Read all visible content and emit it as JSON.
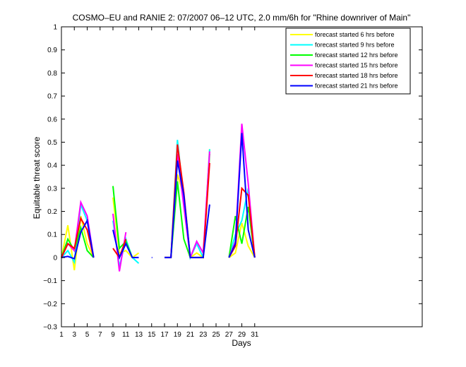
{
  "chart_data": {
    "type": "line",
    "title": "COSMO–EU and RANIE 2: 07/2007 06–12 UTC, 2.0 mm/6h for \"Rhine downriver of Main\"",
    "xlabel": "Days",
    "ylabel": "Equitable threat score",
    "xlim": [
      1,
      57
    ],
    "ylim": [
      -0.3,
      1
    ],
    "x_ticks": [
      1,
      3,
      5,
      7,
      9,
      11,
      13,
      15,
      17,
      19,
      21,
      23,
      25,
      27,
      29,
      31
    ],
    "y_ticks": [
      -0.3,
      -0.2,
      -0.1,
      0,
      0.1,
      0.2,
      0.3,
      0.4,
      0.5,
      0.6,
      0.7,
      0.8,
      0.9,
      1
    ],
    "y_tick_labels": [
      "−0.3",
      "−0.2",
      "−0.1",
      "0",
      "0.1",
      "0.2",
      "0.3",
      "0.4",
      "0.5",
      "0.6",
      "0.7",
      "0.8",
      "0.9",
      "1"
    ],
    "grid": false,
    "legend_position": "top-right",
    "series": [
      {
        "name": "forecast started 6 hrs before",
        "color": "#ffff00",
        "segments": [
          [
            [
              1,
              0
            ],
            [
              2,
              0.14
            ],
            [
              3,
              -0.055
            ],
            [
              4,
              0.18
            ],
            [
              5,
              0.06
            ],
            [
              6,
              0
            ]
          ],
          [
            [
              9,
              0.26
            ],
            [
              10,
              0.02
            ],
            [
              11,
              0.03
            ],
            [
              12,
              0
            ],
            [
              13,
              0.02
            ]
          ],
          [
            [
              17,
              0
            ],
            [
              18,
              0
            ],
            [
              19,
              0.36
            ],
            [
              20,
              0.27
            ],
            [
              21,
              0
            ],
            [
              22,
              0.02
            ],
            [
              23,
              0
            ],
            [
              24,
              0.47
            ]
          ],
          [
            [
              27,
              0
            ],
            [
              28,
              0.02
            ],
            [
              29,
              0.15
            ],
            [
              30,
              0.05
            ],
            [
              31,
              0
            ]
          ]
        ]
      },
      {
        "name": "forecast started 9 hrs before",
        "color": "#00ffff",
        "segments": [
          [
            [
              1,
              0
            ],
            [
              2,
              0.03
            ],
            [
              3,
              -0.02
            ],
            [
              4,
              0.23
            ],
            [
              5,
              0.16
            ],
            [
              6,
              0
            ]
          ],
          [
            [
              9,
              0.16
            ],
            [
              10,
              -0.04
            ],
            [
              11,
              0.08
            ],
            [
              12,
              0
            ],
            [
              13,
              -0.025
            ]
          ],
          [
            [
              17,
              0
            ],
            [
              18,
              0
            ],
            [
              19,
              0.51
            ],
            [
              20,
              0.25
            ],
            [
              21,
              0
            ],
            [
              22,
              0.06
            ],
            [
              23,
              0
            ],
            [
              24,
              0.47
            ]
          ],
          [
            [
              27,
              0
            ],
            [
              28,
              0.1
            ],
            [
              29,
              0.16
            ],
            [
              30,
              0.3
            ],
            [
              31,
              0
            ]
          ]
        ]
      },
      {
        "name": "forecast started 12 hrs before",
        "color": "#00ff00",
        "segments": [
          [
            [
              1,
              0
            ],
            [
              2,
              0.08
            ],
            [
              3,
              0.03
            ],
            [
              4,
              0.13
            ],
            [
              5,
              0.03
            ],
            [
              6,
              0
            ]
          ],
          [
            [
              9,
              0.31
            ],
            [
              10,
              0.04
            ],
            [
              11,
              0.07
            ],
            [
              12,
              0
            ]
          ],
          [
            [
              17,
              0
            ],
            [
              18,
              0
            ],
            [
              19,
              0.33
            ],
            [
              20,
              0.08
            ],
            [
              21,
              0
            ],
            [
              22,
              0
            ],
            [
              23,
              0
            ],
            [
              24,
              0.45
            ]
          ],
          [
            [
              27,
              0
            ],
            [
              28,
              0.18
            ],
            [
              29,
              0.06
            ],
            [
              30,
              0.22
            ],
            [
              31,
              0
            ]
          ]
        ]
      },
      {
        "name": "forecast started 15 hrs before",
        "color": "#ff00ff",
        "segments": [
          [
            [
              1,
              0
            ],
            [
              2,
              0.06
            ],
            [
              3,
              0.03
            ],
            [
              4,
              0.24
            ],
            [
              5,
              0.18
            ],
            [
              6,
              0
            ]
          ],
          [
            [
              9,
              0.19
            ],
            [
              10,
              -0.06
            ],
            [
              11,
              0.11
            ]
          ],
          [
            [
              17,
              0
            ],
            [
              18,
              0
            ],
            [
              19,
              0.45
            ],
            [
              20,
              0.22
            ],
            [
              21,
              0
            ],
            [
              22,
              0.07
            ],
            [
              23,
              0.02
            ],
            [
              24,
              0.46
            ]
          ],
          [
            [
              27,
              0
            ],
            [
              28,
              0.07
            ],
            [
              29,
              0.58
            ],
            [
              30,
              0.32
            ],
            [
              31,
              0
            ]
          ]
        ]
      },
      {
        "name": "forecast started 18 hrs before",
        "color": "#ff0000",
        "segments": [
          [
            [
              1,
              0
            ],
            [
              2,
              0.06
            ],
            [
              3,
              0.04
            ],
            [
              4,
              0.17
            ],
            [
              5,
              0.12
            ],
            [
              6,
              0
            ]
          ],
          [
            [
              9,
              0.04
            ],
            [
              10,
              0
            ],
            [
              11,
              0.08
            ]
          ],
          [
            [
              17,
              0
            ],
            [
              18,
              0
            ],
            [
              19,
              0.49
            ],
            [
              20,
              0.28
            ],
            [
              21,
              0
            ],
            [
              22,
              0
            ],
            [
              23,
              0
            ],
            [
              24,
              0.41
            ]
          ],
          [
            [
              27,
              0
            ],
            [
              28,
              0.05
            ],
            [
              29,
              0.3
            ],
            [
              30,
              0.27
            ],
            [
              31,
              0
            ]
          ]
        ]
      },
      {
        "name": "forecast started 21 hrs before",
        "color": "#0000ff",
        "segments": [
          [
            [
              1,
              0
            ],
            [
              2,
              0.005
            ],
            [
              3,
              -0.005
            ],
            [
              4,
              0.11
            ],
            [
              5,
              0.16
            ],
            [
              6,
              0
            ]
          ],
          [
            [
              9,
              0.12
            ],
            [
              10,
              0
            ],
            [
              11,
              0.06
            ],
            [
              12,
              0
            ],
            [
              13,
              0
            ]
          ],
          [
            [
              15,
              0
            ],
            [
              15.1,
              0
            ]
          ],
          [
            [
              17,
              0
            ],
            [
              18,
              0
            ],
            [
              19,
              0.42
            ],
            [
              20,
              0.27
            ],
            [
              21,
              0
            ],
            [
              22,
              0
            ],
            [
              23,
              0
            ],
            [
              24,
              0.23
            ]
          ],
          [
            [
              27,
              0
            ],
            [
              28,
              0.06
            ],
            [
              29,
              0.54
            ],
            [
              30,
              0.12
            ],
            [
              31,
              0
            ]
          ]
        ]
      }
    ]
  }
}
